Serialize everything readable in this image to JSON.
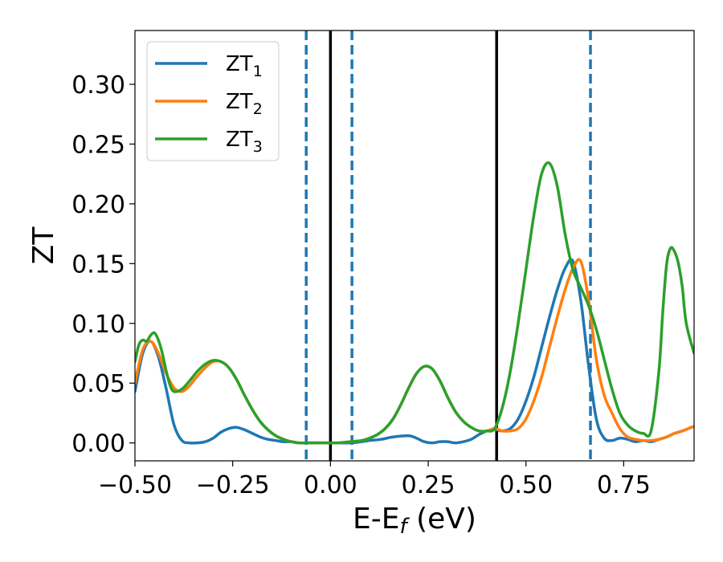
{
  "chart_data": {
    "type": "line",
    "title": "",
    "xlabel": {
      "main": "E-E",
      "sub": "f",
      "unit": " (eV)"
    },
    "ylabel": "ZT",
    "xlim": [
      -0.5,
      0.93
    ],
    "ylim": [
      -0.015,
      0.345
    ],
    "xticks": [
      -0.5,
      -0.25,
      0.0,
      0.25,
      0.5,
      0.75
    ],
    "xtick_labels": [
      "−0.50",
      "−0.25",
      "0.00",
      "0.25",
      "0.50",
      "0.75"
    ],
    "yticks": [
      0.0,
      0.05,
      0.1,
      0.15,
      0.2,
      0.25,
      0.3
    ],
    "ytick_labels": [
      "0.00",
      "0.05",
      "0.10",
      "0.15",
      "0.20",
      "0.25",
      "0.30"
    ],
    "grid": false,
    "legend_position": "top-left",
    "series": [
      {
        "name": "ZT",
        "sub": "1",
        "color": "#1f77b4",
        "x": [
          -0.5,
          -0.48,
          -0.46,
          -0.44,
          -0.42,
          -0.4,
          -0.38,
          -0.36,
          -0.34,
          -0.32,
          -0.3,
          -0.28,
          -0.26,
          -0.24,
          -0.22,
          -0.2,
          -0.18,
          -0.16,
          -0.14,
          -0.12,
          -0.1,
          -0.08,
          -0.06,
          -0.04,
          -0.02,
          0.0,
          0.02,
          0.05,
          0.08,
          0.1,
          0.13,
          0.16,
          0.2,
          0.22,
          0.24,
          0.26,
          0.28,
          0.3,
          0.32,
          0.34,
          0.36,
          0.38,
          0.4,
          0.42,
          0.44,
          0.46,
          0.48,
          0.5,
          0.52,
          0.54,
          0.56,
          0.58,
          0.6,
          0.62,
          0.64,
          0.66,
          0.68,
          0.7,
          0.72,
          0.74,
          0.76,
          0.78,
          0.8,
          0.82,
          0.84,
          0.86,
          0.88,
          0.9,
          0.93
        ],
        "y": [
          0.043,
          0.075,
          0.085,
          0.072,
          0.045,
          0.015,
          0.002,
          0.0,
          0.0,
          0.001,
          0.004,
          0.009,
          0.012,
          0.013,
          0.011,
          0.008,
          0.005,
          0.003,
          0.002,
          0.001,
          0.001,
          0.0,
          0.0,
          0.0,
          0.0,
          0.0,
          0.0,
          0.0,
          0.001,
          0.002,
          0.003,
          0.005,
          0.006,
          0.004,
          0.001,
          0.0,
          0.001,
          0.001,
          0.0,
          0.001,
          0.003,
          0.007,
          0.01,
          0.011,
          0.01,
          0.012,
          0.02,
          0.035,
          0.055,
          0.08,
          0.105,
          0.128,
          0.146,
          0.152,
          0.12,
          0.065,
          0.02,
          0.004,
          0.002,
          0.004,
          0.003,
          0.001,
          0.002,
          0.001,
          0.003,
          0.005,
          0.008,
          0.01,
          0.014
        ]
      },
      {
        "name": "ZT",
        "sub": "2",
        "color": "#ff7f0e",
        "x": [
          -0.5,
          -0.48,
          -0.46,
          -0.44,
          -0.42,
          -0.4,
          -0.38,
          -0.36,
          -0.34,
          -0.32,
          -0.3,
          -0.28,
          -0.26,
          -0.24,
          -0.22,
          -0.2,
          -0.18,
          -0.16,
          -0.14,
          -0.12,
          -0.1,
          -0.08,
          -0.06,
          -0.04,
          -0.02,
          0.0,
          0.02,
          0.05,
          0.08,
          0.1,
          0.12,
          0.14,
          0.16,
          0.18,
          0.2,
          0.22,
          0.24,
          0.26,
          0.28,
          0.3,
          0.32,
          0.34,
          0.36,
          0.38,
          0.4,
          0.42,
          0.44,
          0.46,
          0.48,
          0.5,
          0.52,
          0.54,
          0.56,
          0.58,
          0.6,
          0.62,
          0.64,
          0.66,
          0.68,
          0.7,
          0.72,
          0.74,
          0.76,
          0.78,
          0.8,
          0.82,
          0.84,
          0.86,
          0.88,
          0.9,
          0.93
        ],
        "y": [
          0.05,
          0.078,
          0.085,
          0.075,
          0.058,
          0.046,
          0.043,
          0.048,
          0.056,
          0.063,
          0.068,
          0.068,
          0.063,
          0.053,
          0.04,
          0.028,
          0.018,
          0.011,
          0.006,
          0.003,
          0.001,
          0.0,
          0.0,
          0.0,
          0.0,
          0.0,
          0.0,
          0.001,
          0.002,
          0.004,
          0.007,
          0.012,
          0.02,
          0.032,
          0.046,
          0.058,
          0.064,
          0.062,
          0.052,
          0.038,
          0.026,
          0.018,
          0.013,
          0.01,
          0.01,
          0.012,
          0.01,
          0.01,
          0.012,
          0.02,
          0.035,
          0.055,
          0.08,
          0.105,
          0.128,
          0.146,
          0.152,
          0.12,
          0.07,
          0.04,
          0.025,
          0.012,
          0.005,
          0.003,
          0.002,
          0.002,
          0.003,
          0.005,
          0.008,
          0.01,
          0.014
        ]
      },
      {
        "name": "ZT",
        "sub": "3",
        "color": "#2ca02c",
        "x": [
          -0.5,
          -0.49,
          -0.48,
          -0.47,
          -0.46,
          -0.45,
          -0.44,
          -0.43,
          -0.42,
          -0.41,
          -0.4,
          -0.38,
          -0.36,
          -0.34,
          -0.32,
          -0.3,
          -0.28,
          -0.26,
          -0.24,
          -0.22,
          -0.2,
          -0.18,
          -0.16,
          -0.14,
          -0.12,
          -0.1,
          -0.08,
          -0.06,
          -0.04,
          -0.02,
          0.0,
          0.02,
          0.05,
          0.08,
          0.1,
          0.12,
          0.14,
          0.16,
          0.18,
          0.2,
          0.22,
          0.24,
          0.26,
          0.28,
          0.3,
          0.32,
          0.34,
          0.36,
          0.38,
          0.4,
          0.42,
          0.44,
          0.46,
          0.48,
          0.5,
          0.52,
          0.54,
          0.56,
          0.58,
          0.6,
          0.62,
          0.64,
          0.66,
          0.68,
          0.7,
          0.72,
          0.74,
          0.76,
          0.78,
          0.8,
          0.82,
          0.84,
          0.85,
          0.86,
          0.87,
          0.88,
          0.89,
          0.9,
          0.91,
          0.93
        ],
        "y": [
          0.068,
          0.082,
          0.086,
          0.085,
          0.09,
          0.092,
          0.086,
          0.075,
          0.06,
          0.048,
          0.043,
          0.045,
          0.052,
          0.06,
          0.066,
          0.069,
          0.068,
          0.063,
          0.053,
          0.04,
          0.028,
          0.018,
          0.011,
          0.006,
          0.003,
          0.001,
          0.0,
          0.0,
          0.0,
          0.0,
          0.0,
          0.0,
          0.001,
          0.002,
          0.004,
          0.007,
          0.012,
          0.02,
          0.032,
          0.046,
          0.058,
          0.064,
          0.062,
          0.052,
          0.038,
          0.026,
          0.018,
          0.013,
          0.01,
          0.01,
          0.012,
          0.03,
          0.06,
          0.1,
          0.145,
          0.19,
          0.225,
          0.234,
          0.215,
          0.175,
          0.145,
          0.13,
          0.115,
          0.095,
          0.07,
          0.045,
          0.025,
          0.015,
          0.01,
          0.008,
          0.01,
          0.06,
          0.11,
          0.15,
          0.163,
          0.16,
          0.15,
          0.13,
          0.1,
          0.075
        ]
      }
    ],
    "vlines": [
      {
        "x": -0.062,
        "style": "dashed",
        "color": "#1f77b4"
      },
      {
        "x": 0.0,
        "style": "solid",
        "color": "#000000"
      },
      {
        "x": 0.055,
        "style": "dashed",
        "color": "#1f77b4"
      },
      {
        "x": 0.425,
        "style": "solid",
        "color": "#000000"
      },
      {
        "x": 0.665,
        "style": "dashed",
        "color": "#1f77b4"
      }
    ]
  }
}
